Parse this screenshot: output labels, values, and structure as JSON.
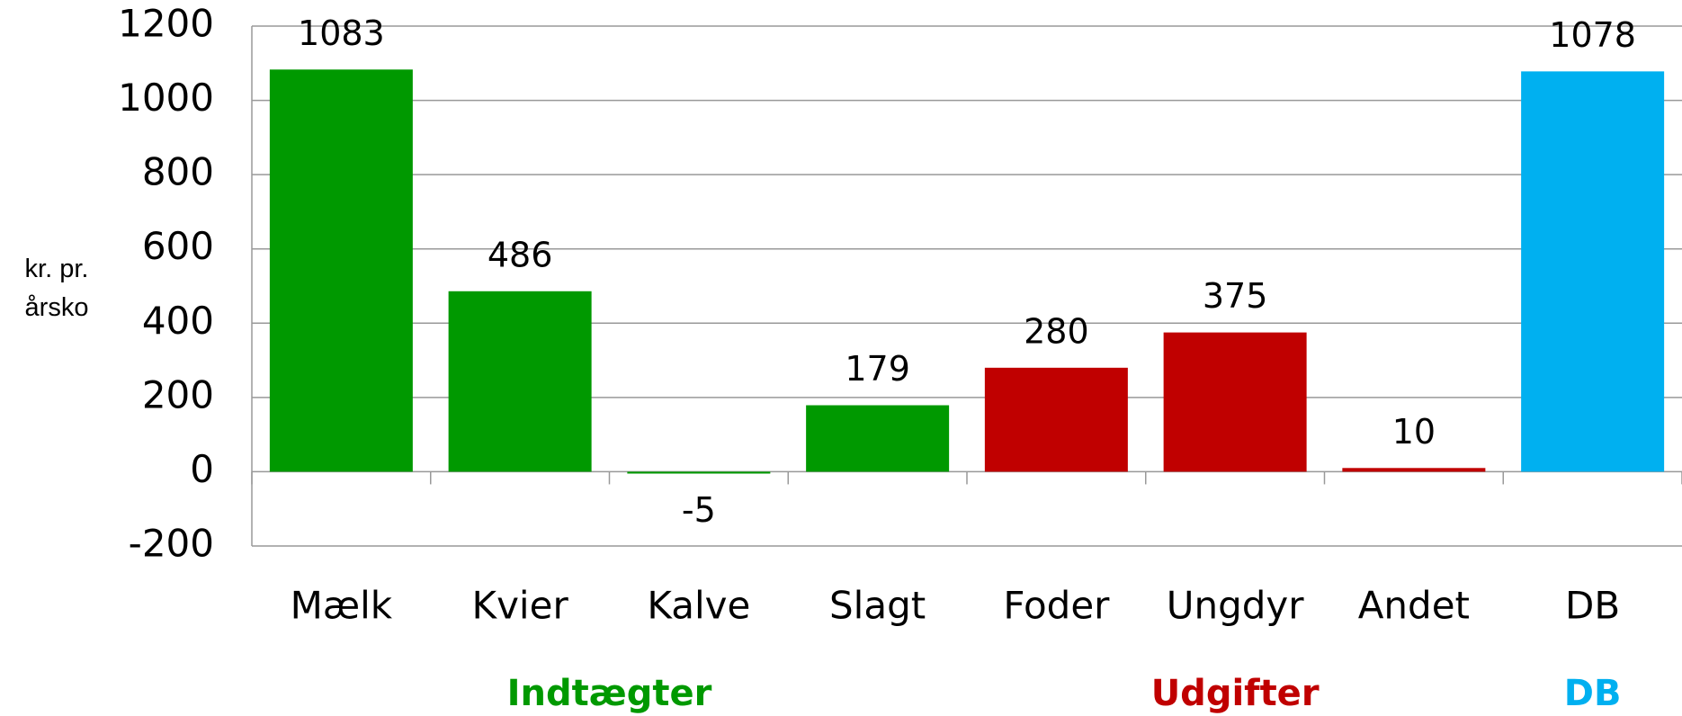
{
  "chart_data": {
    "type": "bar",
    "y_label": "kr. pr. årsko",
    "categories": [
      "Mælk",
      "Kvier",
      "Kalve",
      "Slagt",
      "Foder",
      "Ungdyr",
      "Andet",
      "DB"
    ],
    "values": [
      1083,
      486,
      -5,
      179,
      280,
      375,
      10,
      1078
    ],
    "colors": [
      "#009900",
      "#009900",
      "#009900",
      "#009900",
      "#c00000",
      "#c00000",
      "#c00000",
      "#00b0f0"
    ],
    "groups": [
      {
        "label": "Indtægter",
        "color": "#009900",
        "categories": [
          "Mælk",
          "Kvier",
          "Kalve",
          "Slagt"
        ]
      },
      {
        "label": "Udgifter",
        "color": "#c00000",
        "categories": [
          "Foder",
          "Ungdyr",
          "Andet"
        ]
      },
      {
        "label": "DB",
        "color": "#00b0f0",
        "categories": [
          "DB"
        ]
      }
    ],
    "ylim": [
      -200,
      1200
    ],
    "yticks": [
      -200,
      0,
      200,
      400,
      600,
      800,
      1000,
      1200
    ],
    "grid": true
  }
}
